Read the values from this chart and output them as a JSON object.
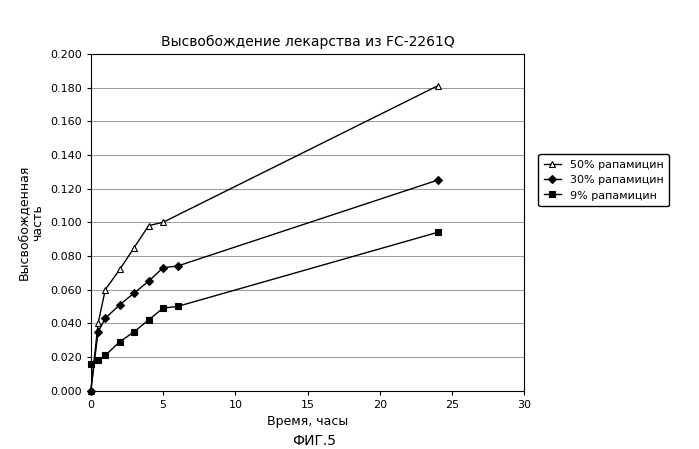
{
  "title": "Высвобождение лекарства из FC-2261Q",
  "xlabel": "Время, часы",
  "ylabel": "Высвобожденная\nчасть",
  "caption": "ФИГ.5",
  "xlim": [
    0,
    30
  ],
  "ylim": [
    0.0,
    0.2
  ],
  "yticks": [
    0.0,
    0.02,
    0.04,
    0.06,
    0.08,
    0.1,
    0.12,
    0.14,
    0.16,
    0.18,
    0.2
  ],
  "xticks": [
    0,
    5,
    10,
    15,
    20,
    25,
    30
  ],
  "series": [
    {
      "label": "50% рапамицин",
      "x": [
        0,
        0.5,
        1,
        2,
        3,
        4,
        5,
        24
      ],
      "y": [
        0.0,
        0.04,
        0.06,
        0.072,
        0.085,
        0.098,
        0.1,
        0.181
      ],
      "marker": "^",
      "color": "#000000",
      "markersize": 5,
      "markerfacecolor": "white",
      "linewidth": 1.0
    },
    {
      "label": "30% рапамицин",
      "x": [
        0,
        0.5,
        1,
        2,
        3,
        4,
        5,
        6,
        24
      ],
      "y": [
        0.0,
        0.035,
        0.043,
        0.051,
        0.058,
        0.065,
        0.073,
        0.074,
        0.125
      ],
      "marker": "D",
      "color": "#000000",
      "markersize": 4,
      "markerfacecolor": "#000000",
      "linewidth": 1.0
    },
    {
      "label": "9% рапамицин",
      "x": [
        0,
        0.5,
        1,
        2,
        3,
        4,
        5,
        6,
        24
      ],
      "y": [
        0.016,
        0.018,
        0.021,
        0.029,
        0.035,
        0.042,
        0.049,
        0.05,
        0.094
      ],
      "marker": "s",
      "color": "#000000",
      "markersize": 5,
      "markerfacecolor": "#000000",
      "linewidth": 1.0
    }
  ],
  "background_color": "#ffffff",
  "grid_color": "#999999",
  "title_fontsize": 10,
  "label_fontsize": 9,
  "tick_fontsize": 8,
  "legend_fontsize": 8
}
